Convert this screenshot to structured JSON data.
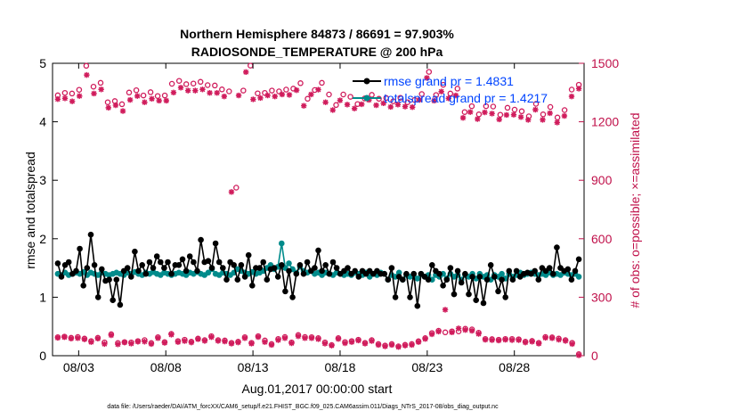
{
  "chart_data": {
    "type": "line",
    "title": "Northern Hemisphere 84873 / 86691 = 97.903%",
    "subtitle": "RADIOSONDE_TEMPERATURE @ 200 hPa",
    "xlabel": "Aug.01,2017 00:00:00 start",
    "ylabel": "rmse and totalspread",
    "y2label": "# of obs: o=possible; ×=assimilated",
    "xlim": [
      1.5,
      32.0
    ],
    "ylim": [
      0,
      5
    ],
    "y2lim": [
      0,
      1500
    ],
    "x_ticks": [
      3,
      8,
      13,
      18,
      23,
      28
    ],
    "x_tick_labels": [
      "08/03",
      "08/08",
      "08/13",
      "08/18",
      "08/23",
      "08/28"
    ],
    "y_ticks": [
      0,
      1,
      2,
      3,
      4,
      5
    ],
    "y2_ticks": [
      0,
      300,
      600,
      900,
      1200,
      1500
    ],
    "footnote": "data file: /Users/raeder/DAI/ATM_forcXX/CAM6_setup/f.e21.FHIST_BGC.f09_025.CAM6assim.011/Diags_NTrS_2017-08/obs_diag_output.nc",
    "colors": {
      "rmse": "#000000",
      "spread": "#008b8b",
      "obs": "#d01c5c",
      "legend_text": "#0044ff"
    },
    "series": [
      {
        "name": "rmse grand pr = 1.4831",
        "color": "#000000",
        "values": [
          1.58,
          1.35,
          1.55,
          1.6,
          1.4,
          1.45,
          1.83,
          1.2,
          1.5,
          2.07,
          1.55,
          1.0,
          1.48,
          1.28,
          1.3,
          0.95,
          1.3,
          0.87,
          1.45,
          1.5,
          1.35,
          1.78,
          1.45,
          1.55,
          1.4,
          1.6,
          1.5,
          1.7,
          1.6,
          1.5,
          1.6,
          1.4,
          1.55,
          1.55,
          1.65,
          1.45,
          1.7,
          1.6,
          1.45,
          1.98,
          1.6,
          1.62,
          1.5,
          1.92,
          1.6,
          1.5,
          1.3,
          1.6,
          1.55,
          1.3,
          1.55,
          1.35,
          1.72,
          1.2,
          1.5,
          1.5,
          1.6,
          1.3,
          1.48,
          1.5,
          1.35,
          1.55,
          1.1,
          1.45,
          1.0,
          1.4,
          1.55,
          1.4,
          1.6,
          1.45,
          1.5,
          1.8,
          1.45,
          1.55,
          1.4,
          1.6,
          1.5,
          1.4,
          1.45,
          1.5,
          1.4,
          1.45,
          1.35,
          1.45,
          1.4,
          1.45,
          1.4,
          1.45,
          1.4,
          1.4,
          1.3,
          1.5,
          1.0,
          1.35,
          1.3,
          1.4,
          1.0,
          1.4,
          0.85,
          1.4,
          1.35,
          1.3,
          1.55,
          1.45,
          1.4,
          1.2,
          1.3,
          1.5,
          1.05,
          1.45,
          1.25,
          1.4,
          1.05,
          1.35,
          0.95,
          1.35,
          0.9,
          1.3,
          1.55,
          1.35,
          1.1,
          1.3,
          1.0,
          1.45,
          1.3,
          1.45,
          1.35,
          1.4,
          1.42,
          1.4,
          1.45,
          1.3,
          1.5,
          1.45,
          1.5,
          1.4,
          1.85,
          1.5,
          1.45,
          1.48,
          1.3,
          1.45,
          1.65
        ]
      },
      {
        "name": "totalspread grand pr = 1.4217",
        "color": "#008b8b",
        "values": [
          1.4,
          1.38,
          1.42,
          1.38,
          1.4,
          1.42,
          1.4,
          1.43,
          1.38,
          1.42,
          1.4,
          1.38,
          1.42,
          1.4,
          1.38,
          1.4,
          1.42,
          1.4,
          1.38,
          1.42,
          1.4,
          1.43,
          1.4,
          1.38,
          1.42,
          1.4,
          1.43,
          1.4,
          1.38,
          1.42,
          1.4,
          1.38,
          1.4,
          1.42,
          1.4,
          1.38,
          1.42,
          1.4,
          1.43,
          1.4,
          1.38,
          1.42,
          1.48,
          1.4,
          1.38,
          1.42,
          1.4,
          1.38,
          1.42,
          1.48,
          1.45,
          1.42,
          1.4,
          1.43,
          1.4,
          1.42,
          1.45,
          1.5,
          1.55,
          1.48,
          1.52,
          1.92,
          1.5,
          1.58,
          1.48,
          1.42,
          1.52,
          1.45,
          1.42,
          1.45,
          1.4,
          1.42,
          1.38,
          1.42,
          1.4,
          1.38,
          1.42,
          1.4,
          1.38,
          1.4,
          1.38,
          1.42,
          1.4,
          1.38,
          1.42,
          1.35,
          1.4,
          1.38,
          1.42,
          1.4,
          1.3,
          1.38,
          1.35,
          1.42,
          1.3,
          1.38,
          1.35,
          1.4,
          1.32,
          1.4,
          1.35,
          1.38,
          1.3,
          1.38,
          1.35,
          1.4,
          1.32,
          1.4,
          1.35,
          1.38,
          1.3,
          1.38,
          1.35,
          1.4,
          1.32,
          1.4,
          1.35,
          1.38,
          1.3,
          1.38,
          1.35,
          1.4,
          1.32,
          1.4,
          1.35,
          1.38,
          1.42,
          1.38,
          1.4,
          1.42,
          1.4,
          1.38,
          1.4,
          1.38,
          1.42,
          1.38,
          1.4,
          1.38,
          1.42,
          1.4,
          1.38,
          1.4,
          1.35
        ]
      },
      {
        "name": "possible obs (upper)",
        "marker": "o",
        "color": "#d01c5c",
        "values": [
          1336,
          1348,
          1345,
          1364,
          1487,
          1380,
          1400,
          1300,
          1306,
          1290,
          1350,
          1362,
          1335,
          1352,
          1332,
          1335,
          1395,
          1410,
          1393,
          1396,
          1405,
          1388,
          1386,
          1366,
          1356,
          862,
          1360,
          1488,
          1346,
          1348,
          1360,
          1356,
          1365,
          1370,
          1398,
          1318,
          1363,
          1400,
          1340,
          1286,
          1340,
          1328,
          1291,
          1320,
          1338,
          1318,
          1322,
          1305,
          1323,
          1300,
          1312,
          1342,
          1456,
          1337,
          1390,
          1345,
          1370,
          1250,
          1280,
          1238,
          1280,
          1278,
          1236,
          1272,
          1262,
          1254,
          1228,
          1292,
          1238,
          1276,
          1222,
          1260,
          1365,
          1390
        ]
      },
      {
        "name": "assimilated obs (upper)",
        "marker": "x",
        "color": "#d01c5c",
        "values": [
          1316,
          1320,
          1305,
          1332,
          1440,
          1345,
          1366,
          1272,
          1285,
          1255,
          1312,
          1332,
          1300,
          1318,
          1308,
          1308,
          1350,
          1375,
          1360,
          1360,
          1366,
          1348,
          1348,
          1330,
          840,
          1335,
          1455,
          1315,
          1322,
          1335,
          1330,
          1340,
          1338,
          1362,
          1282,
          1340,
          1365,
          1300,
          1260,
          1310,
          1288,
          1268,
          1290,
          1312,
          1285,
          1295,
          1276,
          1288,
          1278,
          1275,
          1312,
          1425,
          1308,
          1355,
          1320,
          1335,
          1220,
          1250,
          1214,
          1248,
          1242,
          1212,
          1235,
          1236,
          1224,
          1210,
          1262,
          1210,
          1244,
          1196,
          1230,
          1330,
          1370
        ]
      },
      {
        "name": "possible obs (lower)",
        "marker": "o",
        "color": "#d01c5c",
        "values": [
          95,
          98,
          92,
          96,
          88,
          75,
          92,
          68,
          110,
          65,
          70,
          68,
          75,
          80,
          65,
          95,
          70,
          112,
          75,
          82,
          72,
          88,
          80,
          100,
          80,
          78,
          66,
          72,
          95,
          66,
          100,
          78,
          60,
          86,
          96,
          68,
          106,
          96,
          95,
          90,
          68,
          55,
          90,
          70,
          75,
          82,
          66,
          80,
          60,
          52,
          60,
          48,
          56,
          60,
          74,
          90,
          116,
          128,
          120,
          125,
          125,
          138,
          135,
          118,
          86,
          85,
          82,
          86,
          86,
          84,
          72,
          76,
          66,
          96,
          94,
          88,
          80,
          66,
          8
        ]
      },
      {
        "name": "assimilated obs (lower)",
        "marker": "x",
        "color": "#d01c5c",
        "values": [
          92,
          95,
          88,
          90,
          84,
          70,
          88,
          60,
          105,
          58,
          68,
          62,
          72,
          72,
          60,
          90,
          66,
          108,
          70,
          75,
          68,
          85,
          76,
          95,
          76,
          73,
          62,
          68,
          90,
          62,
          96,
          70,
          55,
          80,
          90,
          64,
          100,
          90,
          90,
          85,
          62,
          52,
          86,
          64,
          70,
          78,
          62,
          75,
          55,
          48,
          55,
          45,
          52,
          55,
          70,
          86,
          110,
          124,
          236,
          120,
          140,
          132,
          128,
          112,
          82,
          80,
          78,
          82,
          80,
          80,
          68,
          72,
          62,
          92,
          90,
          82,
          76,
          60,
          2
        ]
      }
    ]
  }
}
